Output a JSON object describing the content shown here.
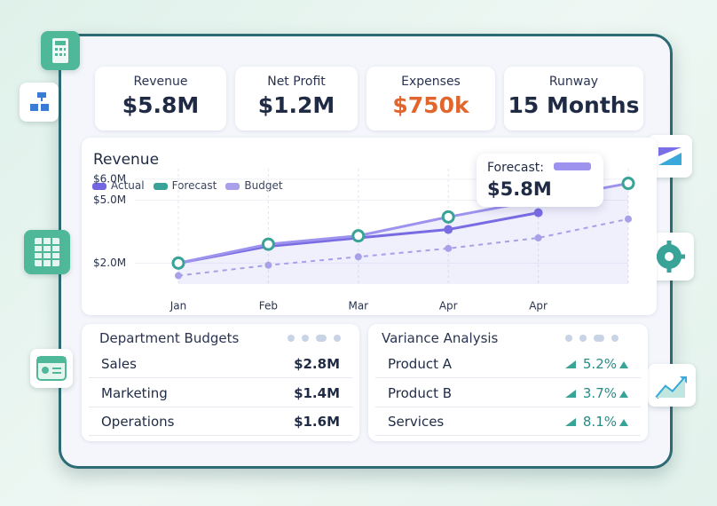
{
  "kpis": [
    {
      "label": "Revenue",
      "value": "$5.8M",
      "color": "#1f2a44"
    },
    {
      "label": "Net Profit",
      "value": "$1.2M",
      "color": "#1f2a44"
    },
    {
      "label": "Expenses",
      "value": "$750k",
      "color": "#e0662e"
    },
    {
      "label": "Runway",
      "value": "15 Months",
      "color": "#1f2a44"
    }
  ],
  "chart_data": {
    "type": "line",
    "title": "Revenue",
    "categories": [
      "Jan",
      "Feb",
      "Mar",
      "Apr",
      "Apr",
      null
    ],
    "series": [
      {
        "name": "Actual",
        "color": "#7466e2",
        "values": [
          2.0,
          2.8,
          3.2,
          3.6,
          4.4,
          null
        ]
      },
      {
        "name": "Forecast",
        "color": "#9d93ee",
        "marker": "#3aa397",
        "values": [
          2.0,
          2.9,
          3.3,
          4.2,
          5.0,
          5.8
        ]
      },
      {
        "name": "Budget",
        "color": "#a8a0e8",
        "values": [
          1.4,
          1.9,
          2.3,
          2.7,
          3.2,
          4.1
        ]
      }
    ],
    "ylim": [
      1,
      6.5
    ],
    "yticks": [
      {
        "value": 6,
        "label": "$6.0M"
      },
      {
        "value": 5,
        "label": "$5.0M"
      },
      {
        "value": 2,
        "label": "$2.0M"
      }
    ],
    "tooltip": {
      "label": "Forecast:",
      "value": "$5.8M"
    }
  },
  "budgets": {
    "title": "Department Budgets",
    "rows": [
      [
        "Sales",
        "$2.8M"
      ],
      [
        "Marketing",
        "$1.4M"
      ],
      [
        "Operations",
        "$1.6M"
      ]
    ]
  },
  "variance": {
    "title": "Variance Analysis",
    "rows": [
      [
        "Product A",
        "5.2%"
      ],
      [
        "Product B",
        "3.7%"
      ],
      [
        "Services",
        "8.1%"
      ]
    ]
  }
}
